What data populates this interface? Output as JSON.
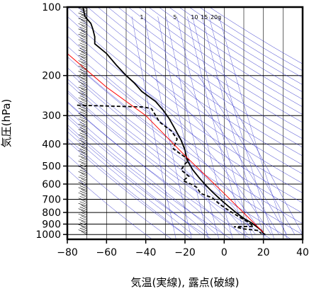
{
  "chart_data": {
    "type": "line",
    "title": "",
    "xlabel": "気温(実線), 露点(破線)",
    "ylabel": "気圧(hPa)",
    "xlim": [
      -80,
      40
    ],
    "ylim": [
      1050,
      100
    ],
    "y_scale": "log",
    "x_ticks": [
      "−80",
      "−60",
      "−40",
      "−20",
      "0",
      "20",
      "40"
    ],
    "x_tick_values": [
      -80,
      -60,
      -40,
      -20,
      0,
      20,
      40
    ],
    "y_ticks": [
      "100",
      "200",
      "300",
      "400",
      "500",
      "600",
      "700",
      "800",
      "900",
      "1000"
    ],
    "y_tick_values": [
      100,
      200,
      300,
      400,
      500,
      600,
      700,
      800,
      900,
      1000
    ],
    "mixing_ratio_labels": [
      "1",
      "5",
      "10",
      "15",
      "20g"
    ],
    "series": [
      {
        "style": "solid",
        "color": "#000000",
        "points": [
          [
            -72,
            100
          ],
          [
            -71,
            110
          ],
          [
            -68,
            118
          ],
          [
            -67,
            125
          ],
          [
            -66,
            135
          ],
          [
            -66,
            145
          ],
          [
            -60,
            160
          ],
          [
            -55,
            180
          ],
          [
            -50,
            200
          ],
          [
            -46,
            215
          ],
          [
            -42,
            235
          ],
          [
            -35,
            260
          ],
          [
            -31,
            285
          ],
          [
            -28,
            310
          ],
          [
            -25,
            345
          ],
          [
            -22,
            385
          ],
          [
            -20,
            425
          ],
          [
            -19,
            470
          ],
          [
            -16,
            520
          ],
          [
            -13,
            560
          ],
          [
            -10,
            600
          ],
          [
            -6,
            650
          ],
          [
            -2,
            700
          ],
          [
            2,
            750
          ],
          [
            6,
            800
          ],
          [
            10,
            850
          ],
          [
            14,
            890
          ],
          [
            17,
            930
          ],
          [
            19,
            960
          ],
          [
            20,
            990
          ],
          [
            21,
            1000
          ]
        ]
      },
      {
        "style": "dashed",
        "color": "#000000",
        "points": [
          [
            -75,
            270
          ],
          [
            -41,
            275
          ],
          [
            -37,
            280
          ],
          [
            -33,
            320
          ],
          [
            -27,
            350
          ],
          [
            -24,
            380
          ],
          [
            -26,
            420
          ],
          [
            -21,
            450
          ],
          [
            -18,
            470
          ],
          [
            -20,
            490
          ],
          [
            -22,
            520
          ],
          [
            -18,
            555
          ],
          [
            -21,
            580
          ],
          [
            -17,
            600
          ],
          [
            -14,
            620
          ],
          [
            -12,
            660
          ],
          [
            -6,
            690
          ],
          [
            -2,
            740
          ],
          [
            3,
            790
          ],
          [
            7,
            830
          ],
          [
            12,
            880
          ],
          [
            15,
            920
          ],
          [
            5,
            925
          ],
          [
            10,
            945
          ],
          [
            17,
            960
          ],
          [
            19,
            990
          ]
        ]
      },
      {
        "style": "solid",
        "color": "#ff0000",
        "points": [
          [
            -80,
            160
          ],
          [
            -60,
            225
          ],
          [
            -40,
            300
          ],
          [
            -20,
            450
          ],
          [
            0,
            660
          ],
          [
            20,
            980
          ]
        ]
      }
    ],
    "grid": true
  }
}
